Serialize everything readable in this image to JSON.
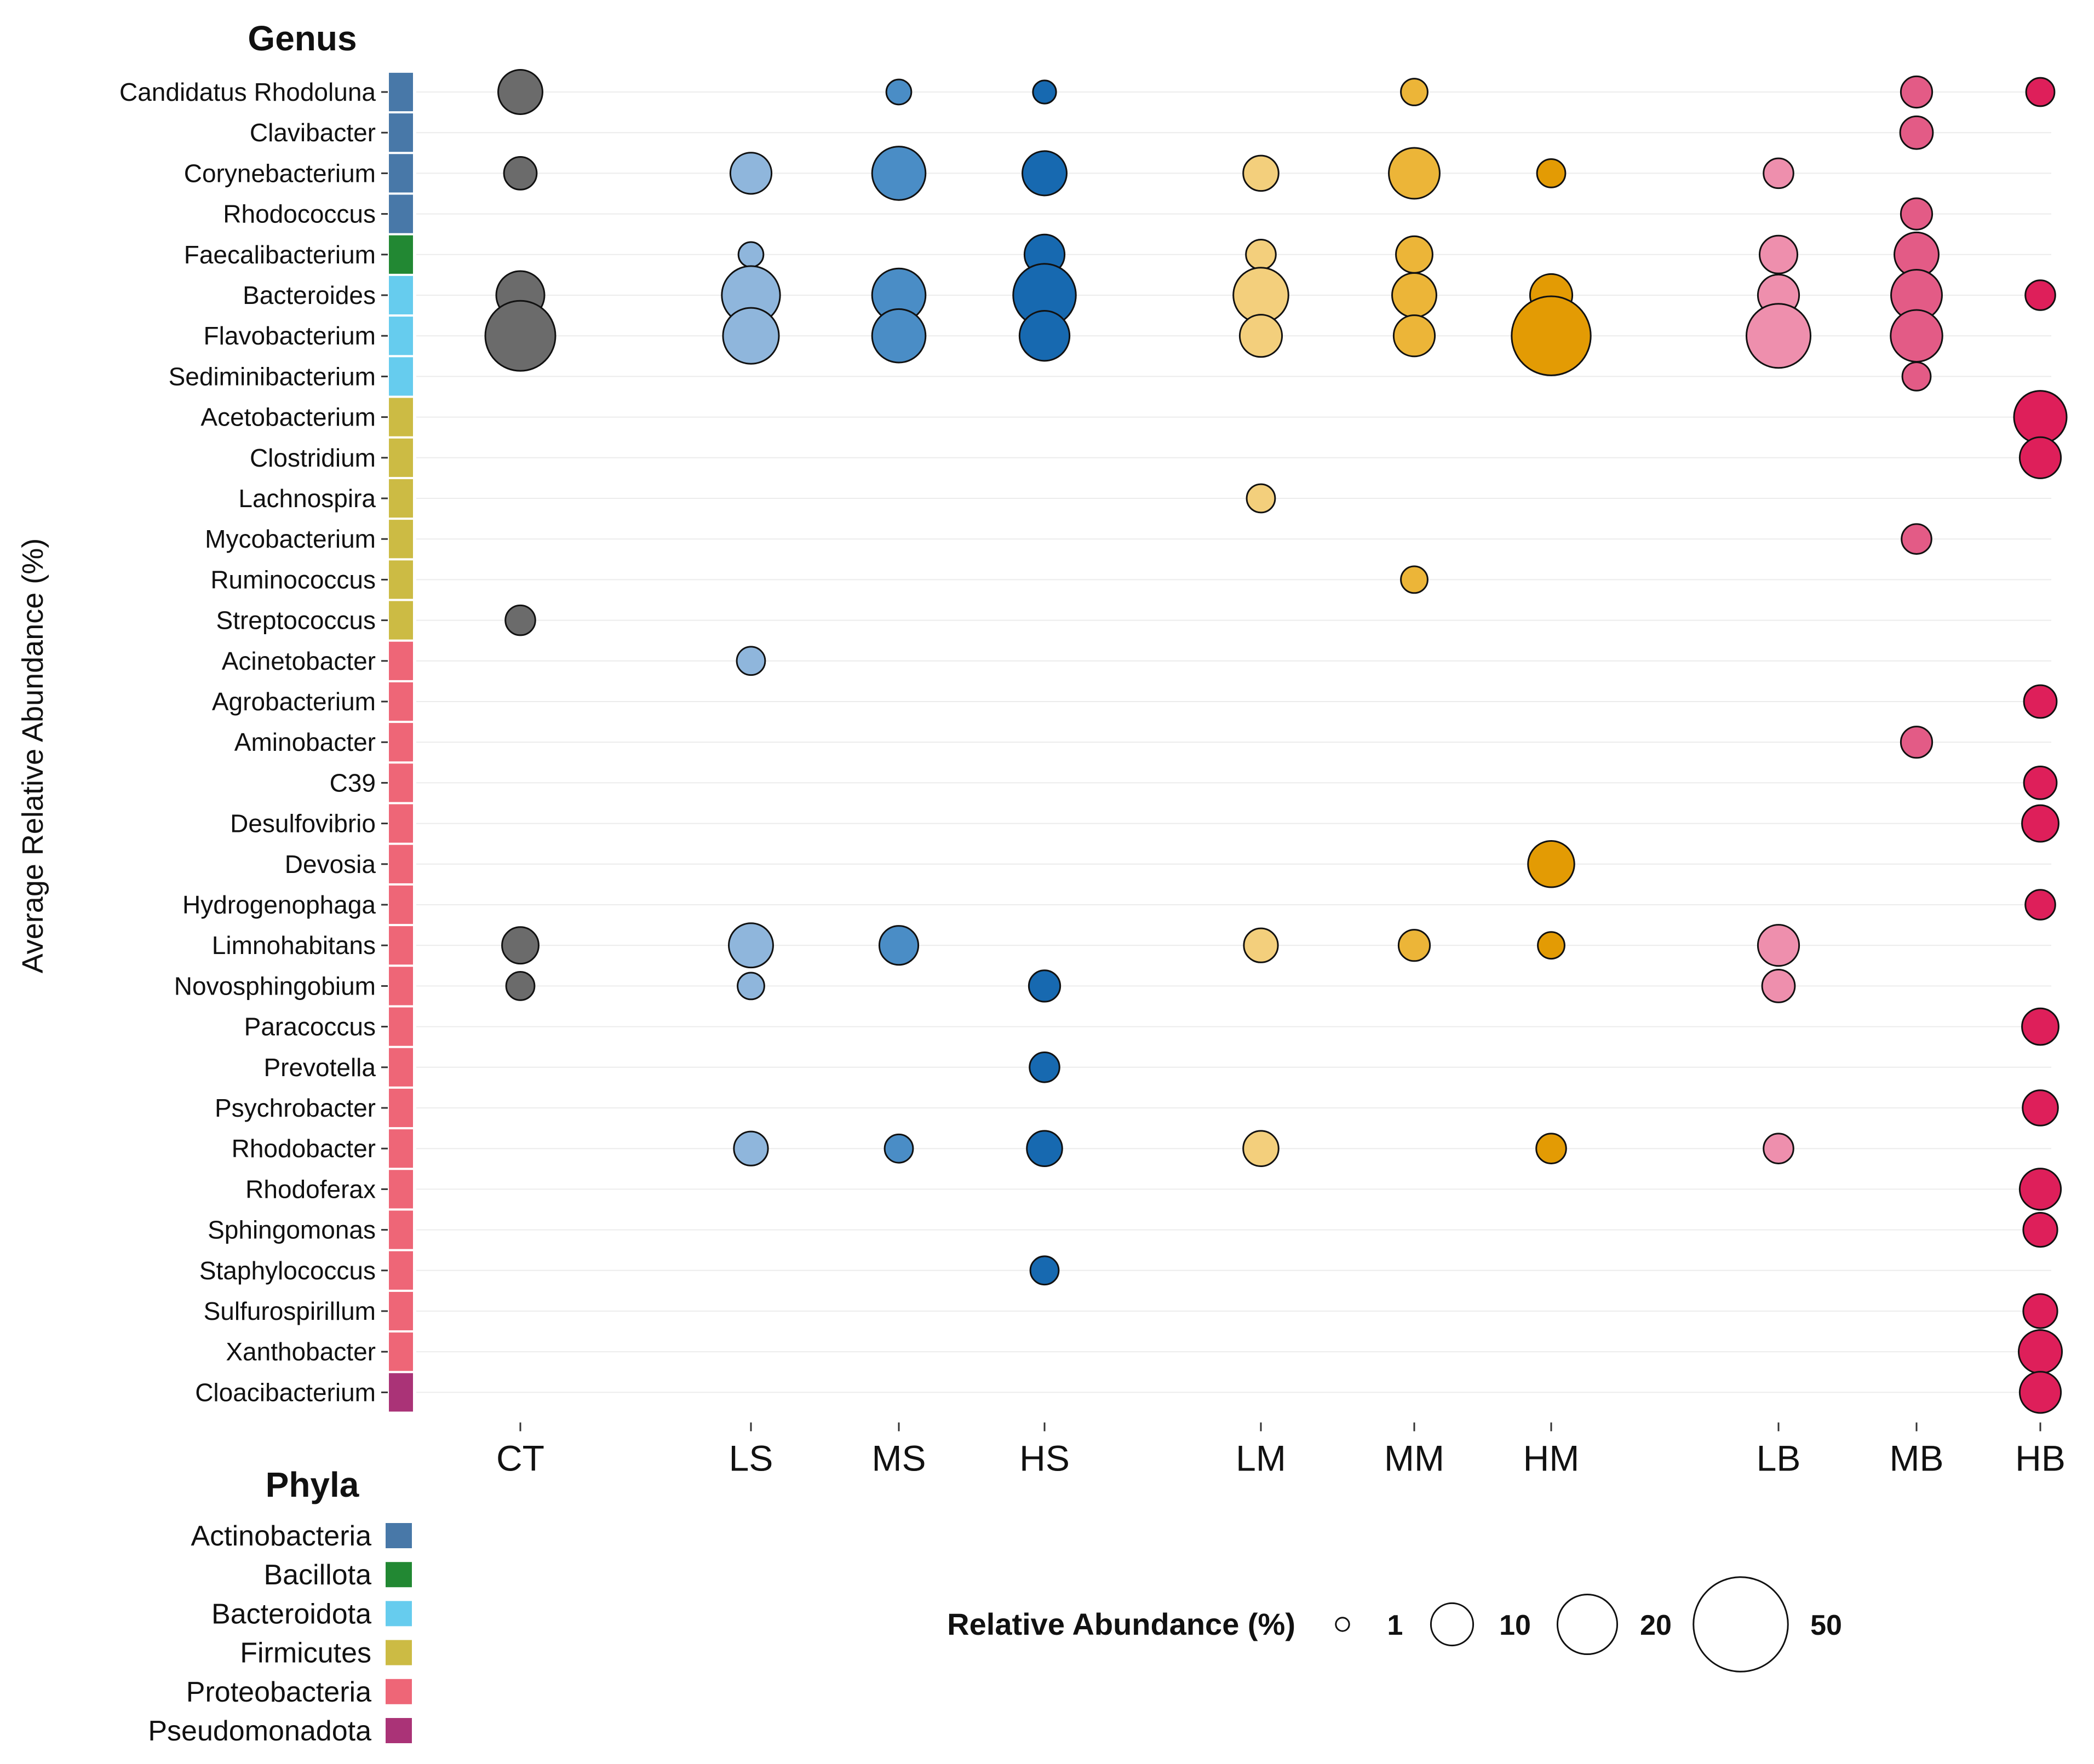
{
  "chart_data": {
    "type": "bubble-matrix",
    "genus_header": "Genus",
    "ylabel": "Average Relative Abundance (%)",
    "columns": [
      "CT",
      "LS",
      "MS",
      "HS",
      "LM",
      "MM",
      "HM",
      "LB",
      "MB",
      "HB"
    ],
    "column_colors": {
      "CT": "#6b6b6b",
      "LS": "#8fb6dc",
      "MS": "#4a8dc6",
      "HS": "#1769b0",
      "LM": "#f3cf7c",
      "MM": "#ecb538",
      "HM": "#e39b04",
      "LB": "#ee8fad",
      "MB": "#e35b86",
      "HB": "#de1f5a"
    },
    "genera": [
      {
        "name": "Candidatus Rhodoluna",
        "phylum": "Actinobacteria"
      },
      {
        "name": "Clavibacter",
        "phylum": "Actinobacteria"
      },
      {
        "name": "Corynebacterium",
        "phylum": "Actinobacteria"
      },
      {
        "name": "Rhodococcus",
        "phylum": "Actinobacteria"
      },
      {
        "name": "Faecalibacterium",
        "phylum": "Bacillota"
      },
      {
        "name": "Bacteroides",
        "phylum": "Bacteroidota"
      },
      {
        "name": "Flavobacterium",
        "phylum": "Bacteroidota"
      },
      {
        "name": "Sediminibacterium",
        "phylum": "Bacteroidota"
      },
      {
        "name": "Acetobacterium",
        "phylum": "Firmicutes"
      },
      {
        "name": "Clostridium",
        "phylum": "Firmicutes"
      },
      {
        "name": "Lachnospira",
        "phylum": "Firmicutes"
      },
      {
        "name": "Mycobacterium",
        "phylum": "Firmicutes"
      },
      {
        "name": "Ruminococcus",
        "phylum": "Firmicutes"
      },
      {
        "name": "Streptococcus",
        "phylum": "Firmicutes"
      },
      {
        "name": "Acinetobacter",
        "phylum": "Proteobacteria"
      },
      {
        "name": "Agrobacterium",
        "phylum": "Proteobacteria"
      },
      {
        "name": "Aminobacter",
        "phylum": "Proteobacteria"
      },
      {
        "name": "C39",
        "phylum": "Proteobacteria"
      },
      {
        "name": "Desulfovibrio",
        "phylum": "Proteobacteria"
      },
      {
        "name": "Devosia",
        "phylum": "Proteobacteria"
      },
      {
        "name": "Hydrogenophaga",
        "phylum": "Proteobacteria"
      },
      {
        "name": "Limnohabitans",
        "phylum": "Proteobacteria"
      },
      {
        "name": "Novosphingobium",
        "phylum": "Proteobacteria"
      },
      {
        "name": "Paracoccus",
        "phylum": "Proteobacteria"
      },
      {
        "name": "Prevotella",
        "phylum": "Proteobacteria"
      },
      {
        "name": "Psychrobacter",
        "phylum": "Proteobacteria"
      },
      {
        "name": "Rhodobacter",
        "phylum": "Proteobacteria"
      },
      {
        "name": "Rhodoferax",
        "phylum": "Proteobacteria"
      },
      {
        "name": "Sphingomonas",
        "phylum": "Proteobacteria"
      },
      {
        "name": "Staphylococcus",
        "phylum": "Proteobacteria"
      },
      {
        "name": "Sulfurospirillum",
        "phylum": "Proteobacteria"
      },
      {
        "name": "Xanthobacter",
        "phylum": "Proteobacteria"
      },
      {
        "name": "Cloacibacterium",
        "phylum": "Pseudomonadota"
      }
    ],
    "values": [
      [
        11,
        null,
        3.5,
        3,
        null,
        4,
        null,
        null,
        5.5,
        4.5
      ],
      [
        null,
        null,
        null,
        null,
        null,
        null,
        null,
        null,
        6,
        null
      ],
      [
        6,
        9.5,
        16,
        11,
        7,
        14.5,
        4.5,
        5,
        null,
        null
      ],
      [
        null,
        null,
        null,
        null,
        null,
        null,
        null,
        null,
        5.5,
        null
      ],
      [
        null,
        3.5,
        null,
        9,
        5,
        7.5,
        null,
        8,
        11,
        null
      ],
      [
        13,
        19,
        16,
        22,
        17,
        11,
        10,
        9.5,
        14.5,
        5
      ],
      [
        27.5,
        17.5,
        16,
        14,
        10,
        9.5,
        35,
        23,
        15,
        null
      ],
      [
        null,
        null,
        null,
        null,
        null,
        null,
        null,
        null,
        4.5,
        null
      ],
      [
        null,
        null,
        null,
        null,
        null,
        null,
        null,
        null,
        null,
        15.5
      ],
      [
        null,
        null,
        null,
        null,
        null,
        null,
        null,
        null,
        null,
        9.5
      ],
      [
        null,
        null,
        null,
        null,
        4.5,
        null,
        null,
        null,
        null,
        null
      ],
      [
        null,
        null,
        null,
        null,
        null,
        null,
        null,
        null,
        5,
        null
      ],
      [
        null,
        null,
        null,
        null,
        null,
        4,
        null,
        null,
        null,
        null
      ],
      [
        5,
        null,
        null,
        null,
        null,
        null,
        null,
        null,
        null,
        null
      ],
      [
        null,
        4.5,
        null,
        null,
        null,
        null,
        null,
        null,
        null,
        null
      ],
      [
        null,
        null,
        null,
        null,
        null,
        null,
        null,
        null,
        null,
        6
      ],
      [
        null,
        null,
        null,
        null,
        null,
        null,
        null,
        null,
        5.5,
        null
      ],
      [
        null,
        null,
        null,
        null,
        null,
        null,
        null,
        null,
        null,
        6
      ],
      [
        null,
        null,
        null,
        null,
        null,
        null,
        null,
        null,
        null,
        7.5
      ],
      [
        null,
        null,
        null,
        null,
        null,
        null,
        12,
        null,
        null,
        null
      ],
      [
        null,
        null,
        null,
        null,
        null,
        null,
        null,
        null,
        null,
        5
      ],
      [
        7.5,
        11,
        8.5,
        null,
        6.5,
        5.5,
        4,
        9.5,
        null,
        null
      ],
      [
        4.5,
        4,
        null,
        5.5,
        null,
        null,
        null,
        6,
        null,
        null
      ],
      [
        null,
        null,
        null,
        null,
        null,
        null,
        null,
        null,
        null,
        7.5
      ],
      [
        null,
        null,
        null,
        5,
        null,
        null,
        null,
        null,
        null,
        null
      ],
      [
        null,
        null,
        null,
        null,
        null,
        null,
        null,
        null,
        null,
        7
      ],
      [
        null,
        6.5,
        4.5,
        7,
        7,
        null,
        5,
        5,
        null,
        null
      ],
      [
        null,
        null,
        null,
        null,
        null,
        null,
        null,
        null,
        null,
        9.5
      ],
      [
        null,
        null,
        null,
        null,
        null,
        null,
        null,
        null,
        null,
        6.5
      ],
      [
        null,
        null,
        null,
        4.5,
        null,
        null,
        null,
        null,
        null,
        null
      ],
      [
        null,
        null,
        null,
        null,
        null,
        null,
        null,
        null,
        null,
        6.5
      ],
      [
        null,
        null,
        null,
        null,
        null,
        null,
        null,
        null,
        null,
        10.5
      ],
      [
        null,
        null,
        null,
        null,
        null,
        null,
        null,
        null,
        null,
        9.5
      ]
    ],
    "phyla_header": "Phyla",
    "phyla": [
      {
        "name": "Actinobacteria",
        "color": "#4878a8"
      },
      {
        "name": "Bacillota",
        "color": "#228833"
      },
      {
        "name": "Bacteroidota",
        "color": "#66ccee"
      },
      {
        "name": "Firmicutes",
        "color": "#ccbb44"
      },
      {
        "name": "Proteobacteria",
        "color": "#ee6677"
      },
      {
        "name": "Pseudomonadota",
        "color": "#aa3377"
      }
    ],
    "size_legend": {
      "title": "Relative Abundance (%)",
      "items": [
        {
          "label": "1",
          "value": 1
        },
        {
          "label": "10",
          "value": 10
        },
        {
          "label": "20",
          "value": 20
        },
        {
          "label": "50",
          "value": 50
        }
      ]
    }
  }
}
